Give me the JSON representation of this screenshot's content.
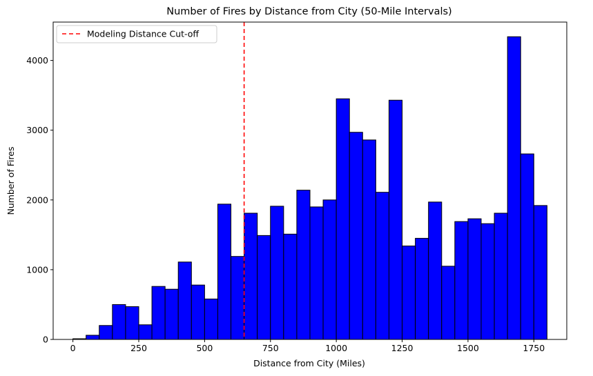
{
  "chart_data": {
    "type": "bar",
    "title": "Number of Fires by Distance from City (50-Mile Intervals)",
    "xlabel": "Distance from City (Miles)",
    "ylabel": "Number of Fires",
    "xlim": [
      -75,
      1875
    ],
    "ylim": [
      0,
      4550
    ],
    "bin_width": 50,
    "x_ticks": [
      0,
      250,
      500,
      750,
      1000,
      1250,
      1500,
      1750
    ],
    "y_ticks": [
      0,
      1000,
      2000,
      3000,
      4000
    ],
    "bins": [
      0,
      50,
      100,
      150,
      200,
      250,
      300,
      350,
      400,
      450,
      500,
      550,
      600,
      650,
      700,
      750,
      800,
      850,
      900,
      950,
      1000,
      1050,
      1100,
      1150,
      1200,
      1250,
      1300,
      1350,
      1400,
      1450,
      1500,
      1550,
      1600,
      1650,
      1700,
      1750
    ],
    "values": [
      10,
      60,
      200,
      500,
      470,
      210,
      760,
      720,
      1110,
      780,
      580,
      1940,
      1190,
      1810,
      1490,
      1910,
      1510,
      2140,
      1900,
      2000,
      3450,
      2970,
      2860,
      2110,
      3430,
      1340,
      1450,
      1970,
      1050,
      1690,
      1730,
      1660,
      1810,
      4340,
      2660,
      1920
    ],
    "bar_color": "#0000ff",
    "edge_color": "#000000",
    "grid": false,
    "reference_line": {
      "x": 650,
      "label": "Modeling Distance Cut-off",
      "color": "#ff0000",
      "style": "dashed"
    },
    "legend_placement": "top-left"
  }
}
